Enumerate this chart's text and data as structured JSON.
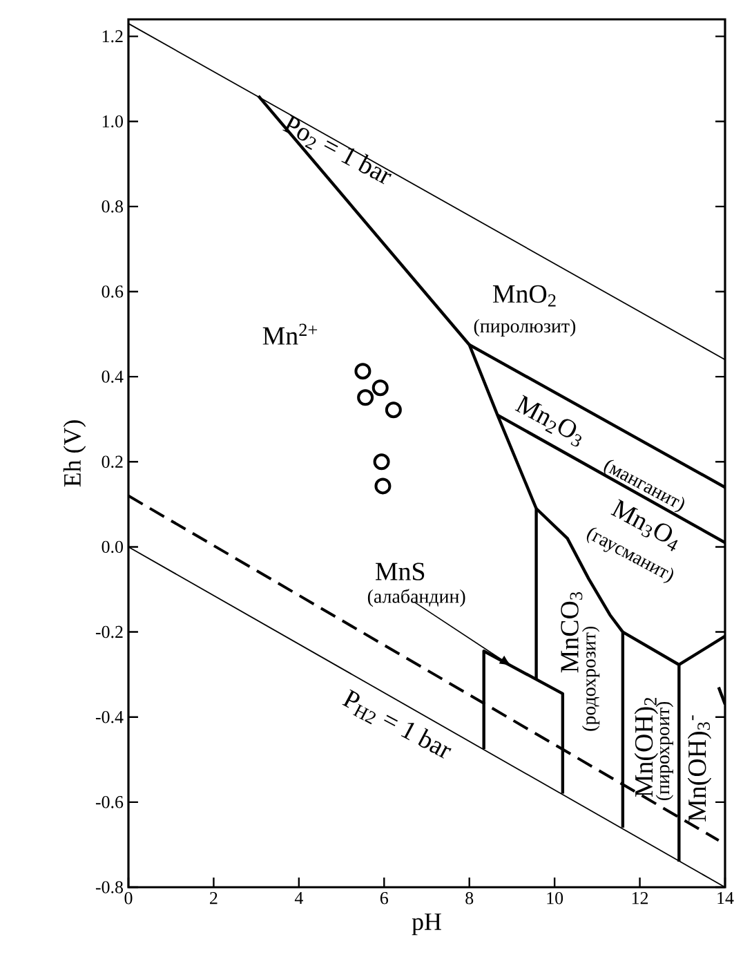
{
  "chart_data": {
    "type": "line",
    "xlabel": "pH",
    "ylabel": "Eh (V)",
    "xlim": [
      0,
      14
    ],
    "ylim": [
      -0.8,
      1.24
    ],
    "xticks": [
      0,
      2,
      4,
      6,
      8,
      10,
      12,
      14
    ],
    "yticks": [
      -0.8,
      -0.6,
      -0.4,
      -0.2,
      {
        "value": 0,
        "label": "0.0"
      },
      0.2,
      0.4,
      0.6,
      0.8,
      {
        "value": 1,
        "label": "1.0"
      },
      1.2
    ],
    "series": [
      {
        "color": "#000000",
        "line_style": "solid",
        "x": [
          0,
          14
        ],
        "values": [
          1.23,
          0.44
        ]
      },
      {
        "color": "#000000",
        "line_style": "solid",
        "x": [
          0,
          14
        ],
        "values": [
          0,
          -0.8
        ]
      },
      {
        "color": "#000000",
        "line_style": "dashed",
        "x": [
          0,
          13.85
        ],
        "values": [
          0.12,
          -0.69
        ]
      },
      {
        "color": "#000000",
        "line_style": "solid",
        "x": [
          3.05,
          8.0,
          8.66,
          9.57,
          9.57
        ],
        "values": [
          1.06,
          0.475,
          0.31,
          0.09,
          -0.31
        ]
      },
      {
        "color": "#000000",
        "line_style": "solid",
        "x": [
          8.0,
          14
        ],
        "values": [
          0.475,
          0.14
        ]
      },
      {
        "color": "#000000",
        "line_style": "solid",
        "x": [
          8.66,
          14
        ],
        "values": [
          0.31,
          0.01
        ]
      },
      {
        "color": "#000000",
        "line_style": "solid",
        "x": [
          9.57,
          10.3,
          10.8,
          11.3,
          11.6,
          11.6
        ],
        "values": [
          0.09,
          0.02,
          -0.075,
          -0.16,
          -0.2,
          -0.66
        ]
      },
      {
        "color": "#000000",
        "line_style": "solid",
        "x": [
          8.34,
          8.34,
          10.19,
          10.19
        ],
        "values": [
          -0.475,
          -0.245,
          -0.345,
          -0.58
        ]
      },
      {
        "color": "#000000",
        "line_style": "solid",
        "x": [
          11.6,
          12.92,
          12.92
        ],
        "values": [
          -0.2,
          -0.277,
          -0.74
        ]
      },
      {
        "color": "#000000",
        "line_style": "solid",
        "x": [
          12.92,
          14
        ],
        "values": [
          -0.277,
          -0.21
        ]
      },
      {
        "color": "#000000",
        "line_style": "solid",
        "x": [
          13.85,
          14
        ],
        "values": [
          -0.33,
          -0.37
        ]
      },
      {
        "type": "scatter",
        "color": "#000000",
        "marker": "circle",
        "x": [
          5.5,
          5.91,
          5.56,
          6.22,
          5.94,
          5.97
        ],
        "values": [
          0.413,
          0.374,
          0.351,
          0.322,
          0.2,
          0.143
        ]
      }
    ],
    "annotations": [
      "Po$_{2}$ = 1 bar",
      "Mn$^{2+}$",
      "MnO$_{2}$",
      "(пиролюзит)",
      "Mn$_{2}$O$_{3}$",
      "(манганит)",
      "Mn$_{3}$O$_{4}$",
      "(гаусманит)",
      {
        "text": "MnS",
        "x": 9.0,
        "y": -0.281
      },
      "(алабандин)",
      "MnCO$_{3}$",
      "(родохрозит)",
      "Mn(OH)$_{2}$",
      "(пирохроит)",
      "Mn(OH)$_{3}$$^{-}$",
      "P$_{H2}$ = 1 bar"
    ]
  }
}
